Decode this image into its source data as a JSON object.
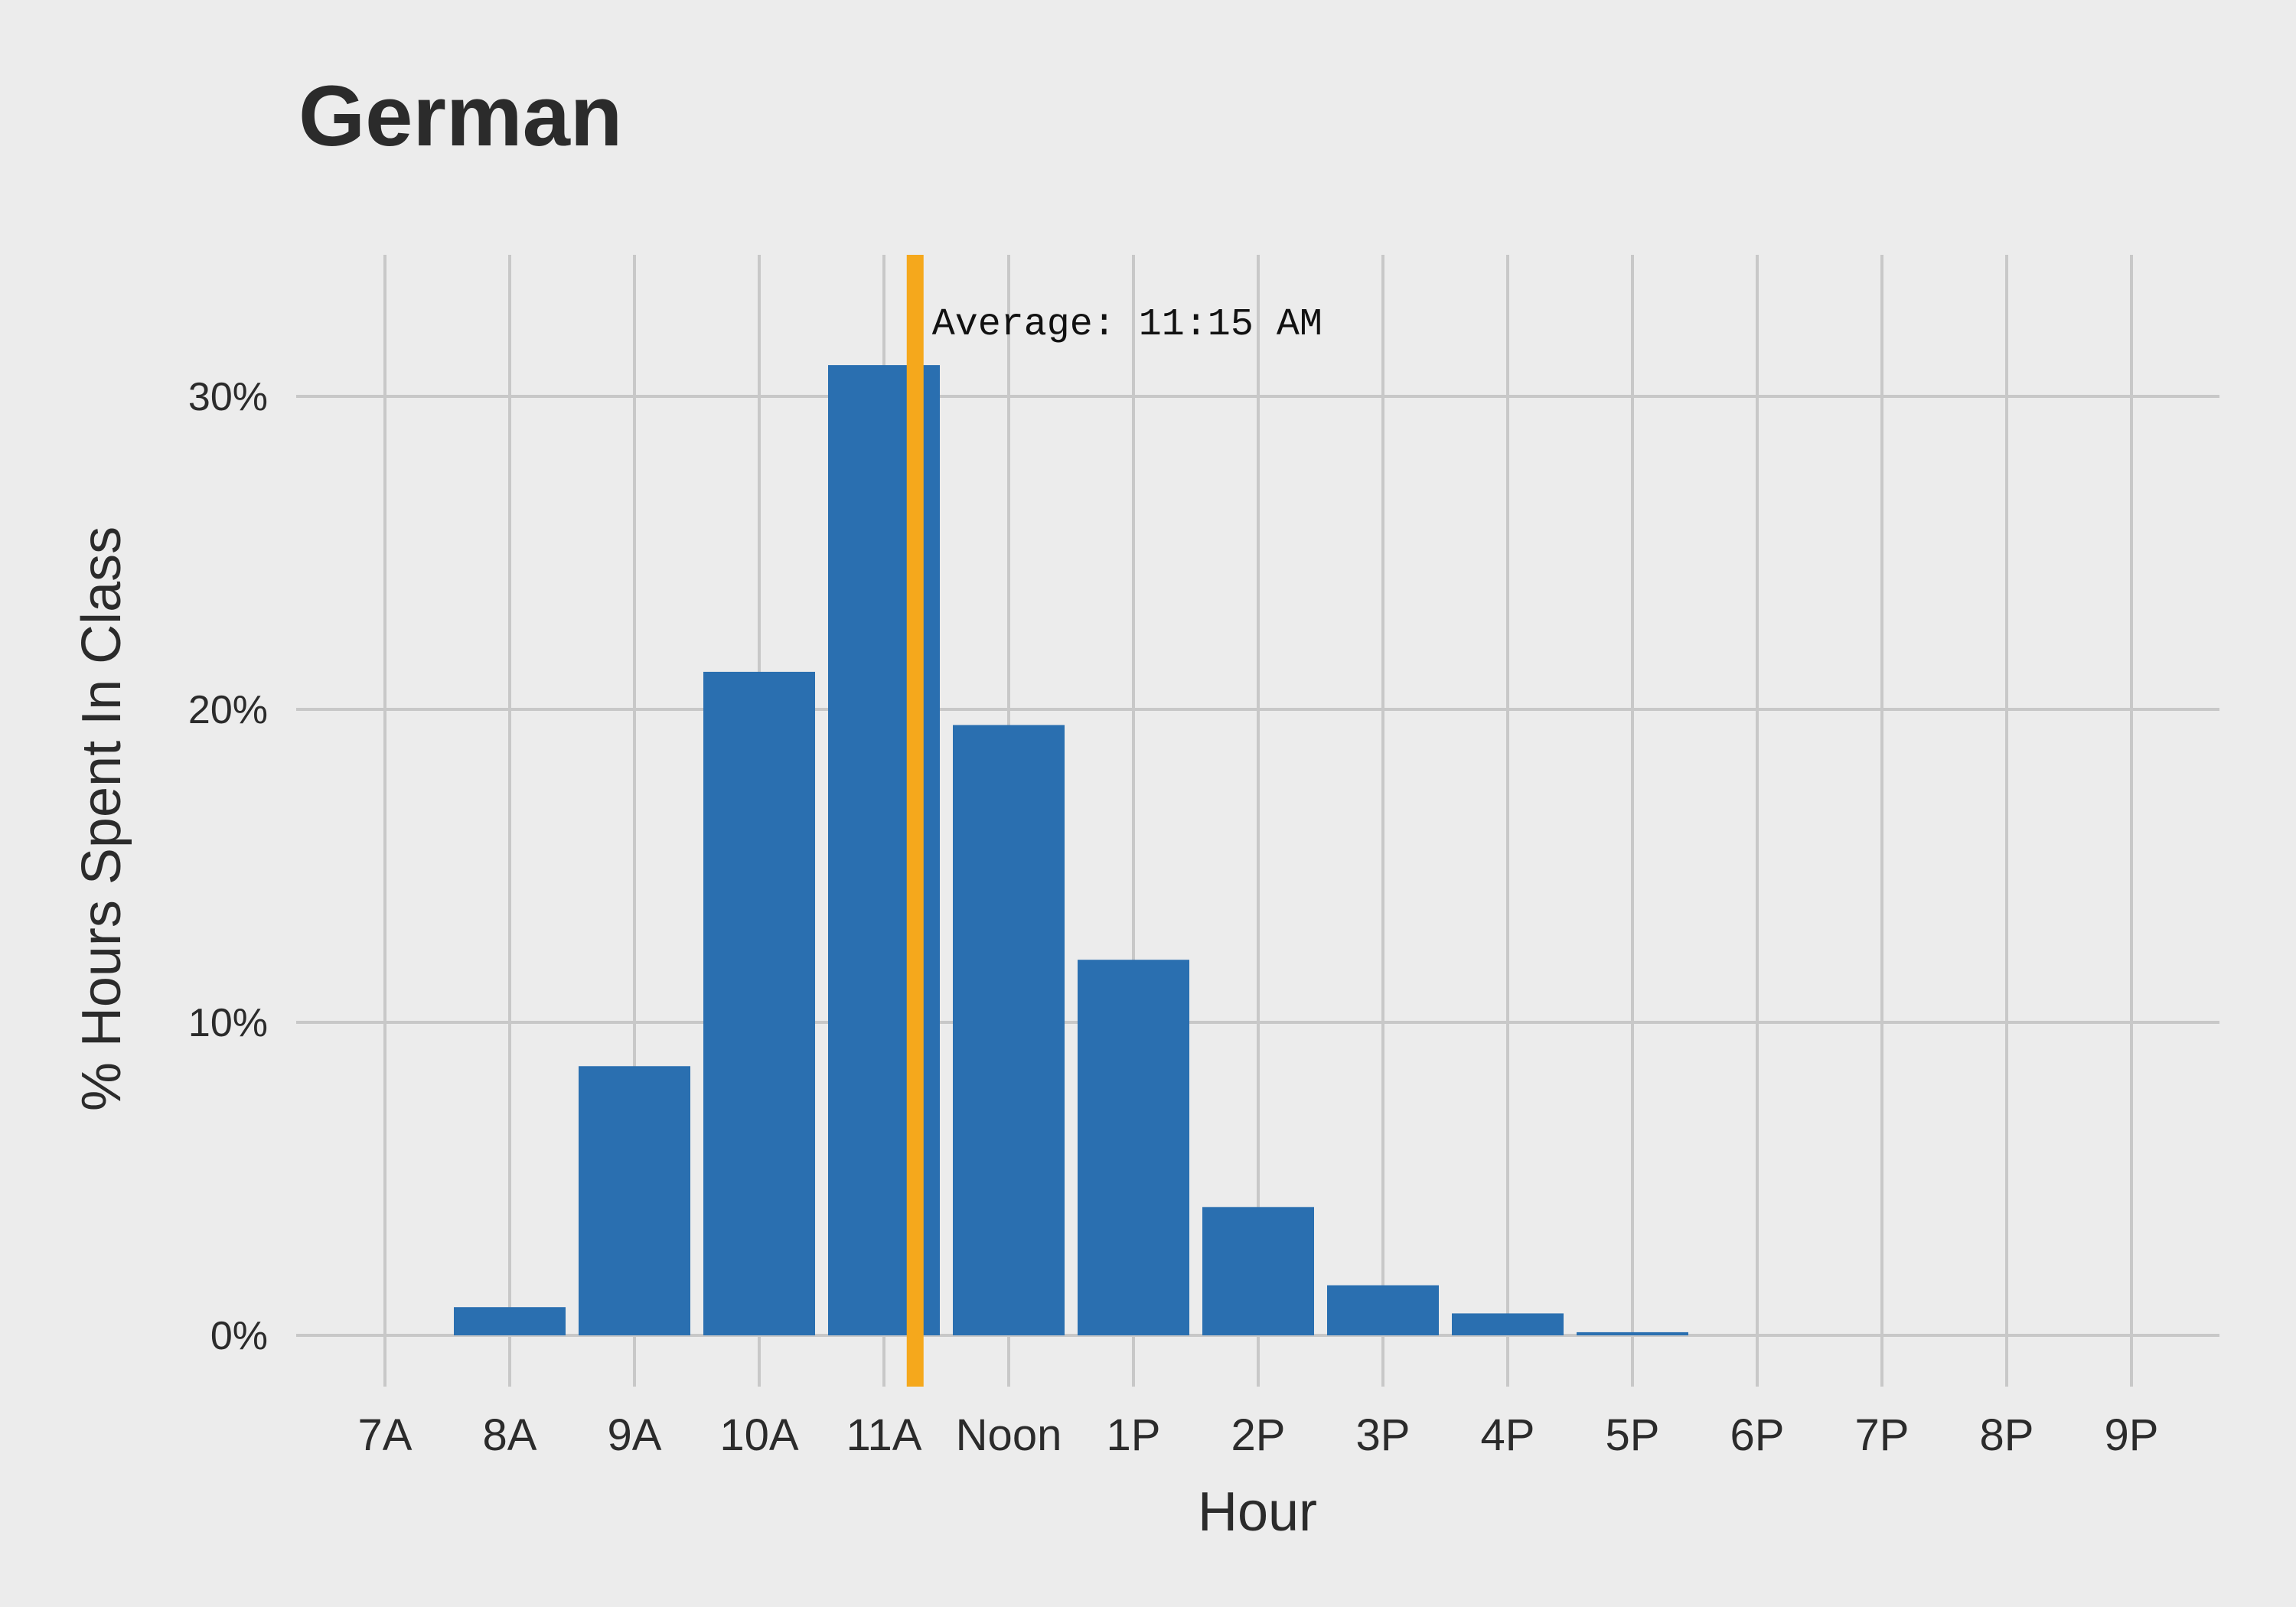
{
  "chart_data": {
    "type": "bar",
    "title": "German",
    "xlabel": "Hour",
    "ylabel": "% Hours Spent In Class",
    "categories": [
      "7A",
      "8A",
      "9A",
      "10A",
      "11A",
      "Noon",
      "1P",
      "2P",
      "3P",
      "4P",
      "5P",
      "6P",
      "7P",
      "8P",
      "9P"
    ],
    "values": [
      0.0,
      0.9,
      8.6,
      21.2,
      31.0,
      19.5,
      12.0,
      4.1,
      1.6,
      0.7,
      0.1,
      0.0,
      0.0,
      0.0,
      0.0
    ],
    "ylim": [
      0,
      34
    ],
    "yticks": [
      0,
      10,
      20,
      30
    ],
    "ytick_labels": [
      "0%",
      "10%",
      "20%",
      "30%"
    ],
    "grid": true,
    "average": {
      "x_hour": 11.25,
      "label": "Average: 11:15 AM",
      "color": "#f5a81c"
    },
    "colors": {
      "bar": "#2a6fb0",
      "grid": "#c8c8c8",
      "background": "#ececec"
    }
  }
}
